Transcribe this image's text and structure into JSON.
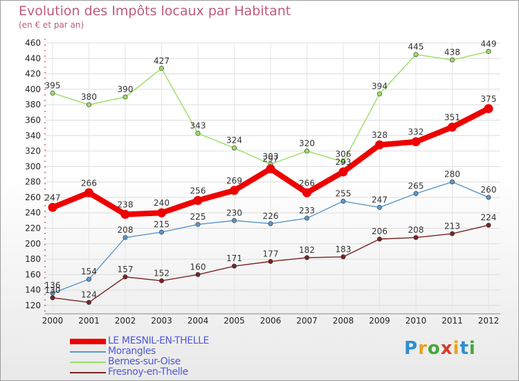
{
  "header": {
    "title": "Evolution des Impôts locaux par Habitant",
    "subtitle": "(en € et par an)"
  },
  "logo": {
    "text": "Proxiti",
    "letters": [
      {
        "ch": "P",
        "color": "#2f8fd0"
      },
      {
        "ch": "r",
        "color": "#e8a21e"
      },
      {
        "ch": "o",
        "color": "#45a83a"
      },
      {
        "ch": "x",
        "color": "#d8392b"
      },
      {
        "ch": "i",
        "color": "#e8a21e"
      },
      {
        "ch": "t",
        "color": "#2f8fd0"
      },
      {
        "ch": "i",
        "color": "#45a83a"
      }
    ]
  },
  "chart_data": {
    "type": "line",
    "title": "Evolution des Impôts locaux par Habitant",
    "subtitle": "(en € et par an)",
    "x": [
      "2000",
      "2001",
      "2002",
      "2003",
      "2004",
      "2005",
      "2006",
      "2007",
      "2008",
      "2009",
      "2010",
      "2011",
      "2012"
    ],
    "ylim": [
      120,
      460
    ],
    "yticks": [
      120,
      140,
      160,
      180,
      200,
      220,
      240,
      260,
      280,
      300,
      320,
      340,
      360,
      380,
      400,
      420,
      440,
      460
    ],
    "grid": true,
    "legend_position": "bottom-left",
    "series": [
      {
        "name": "LE MESNIL-EN-THELLE",
        "color": "#ee0000",
        "emphasis": true,
        "values": [
          247,
          266,
          238,
          240,
          256,
          269,
          297,
          266,
          293,
          328,
          332,
          351,
          375
        ]
      },
      {
        "name": "Morangles",
        "color": "#5b97c9",
        "emphasis": false,
        "values": [
          136,
          154,
          208,
          215,
          225,
          230,
          226,
          233,
          255,
          247,
          265,
          280,
          260
        ]
      },
      {
        "name": "Bernes-sur-Oise",
        "color": "#99dd66",
        "emphasis": false,
        "values": [
          395,
          380,
          390,
          427,
          343,
          324,
          303,
          320,
          306,
          394,
          445,
          438,
          449
        ]
      },
      {
        "name": "Fresnoy-en-Thelle",
        "color": "#7a2323",
        "emphasis": false,
        "values": [
          130,
          124,
          157,
          152,
          160,
          171,
          177,
          182,
          183,
          206,
          208,
          213,
          224
        ]
      }
    ]
  }
}
